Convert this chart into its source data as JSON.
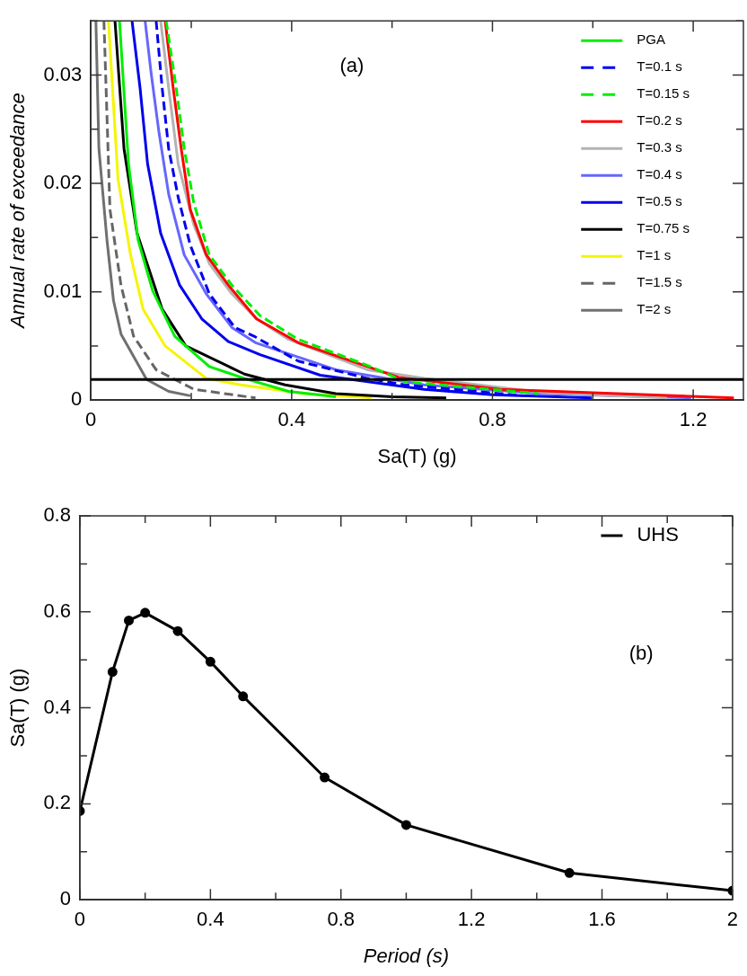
{
  "chart_data": [
    {
      "type": "line",
      "xlabel": "Sa(T) (g)",
      "ylabel": "Annual rate of exceedance",
      "xlim": [
        0,
        1.3
      ],
      "ylim": [
        0,
        0.035
      ],
      "xticks": [
        0,
        {
          "value": 0.2,
          "label": null
        },
        0.4,
        {
          "value": 0.6,
          "label": null
        },
        0.8,
        {
          "value": 1.0,
          "label": null
        },
        1.2
      ],
      "yticks": [
        0,
        {
          "value": 0.005,
          "label": null
        },
        0.01,
        {
          "value": 0.015,
          "label": null
        },
        0.02,
        {
          "value": 0.025,
          "label": null
        },
        0.03,
        {
          "value": 0.035,
          "label": null
        }
      ],
      "grid": false,
      "legend": "top right",
      "marker": "none",
      "line_style": "solid",
      "annotations": [
        "(a)"
      ],
      "ref_lines": [
        {
          "axis": "y",
          "value": 0.0019,
          "color": "#000000"
        }
      ],
      "series": [
        {
          "name": "PGA",
          "color": "#00ee00",
          "x": [
            0.057,
            0.075,
            0.094,
            0.123,
            0.167,
            0.236,
            0.306,
            0.394,
            0.488
          ],
          "values": [
            0.035,
            0.0218,
            0.0148,
            0.0101,
            0.0059,
            0.0031,
            0.002,
            0.0008,
            0.0003
          ]
        },
        {
          "name": "T=0.1 s",
          "color": "#0000ee",
          "line_style": "dashed",
          "x": [
            0.13,
            0.142,
            0.155,
            0.174,
            0.198,
            0.236,
            0.287,
            0.325,
            0.413,
            0.551,
            0.626,
            0.815,
            0.86
          ],
          "values": [
            0.035,
            0.0288,
            0.0232,
            0.0187,
            0.0143,
            0.0098,
            0.0067,
            0.0059,
            0.0036,
            0.002,
            0.0014,
            0.0006,
            0.0004
          ]
        },
        {
          "name": "T=0.15 s",
          "color": "#00ee00",
          "line_style": "dashed",
          "x": [
            0.15,
            0.17,
            0.186,
            0.205,
            0.236,
            0.281,
            0.337,
            0.413,
            0.551,
            0.626,
            0.891
          ],
          "values": [
            0.035,
            0.0288,
            0.0232,
            0.0182,
            0.0134,
            0.0106,
            0.0078,
            0.0056,
            0.0032,
            0.0017,
            0.0006
          ]
        },
        {
          "name": "T=0.2 s",
          "color": "#ff0000",
          "x": [
            0.148,
            0.164,
            0.18,
            0.198,
            0.23,
            0.274,
            0.33,
            0.413,
            0.551,
            0.613,
            0.815,
            1.281
          ],
          "values": [
            0.035,
            0.0288,
            0.0232,
            0.0176,
            0.0134,
            0.0106,
            0.0075,
            0.0053,
            0.0031,
            0.0021,
            0.001,
            0.0002
          ]
        },
        {
          "name": "T=0.3 s",
          "color": "#b3b3b3",
          "x": [
            0.139,
            0.155,
            0.174,
            0.205,
            0.236,
            0.281,
            0.33,
            0.394,
            0.551,
            0.664,
            0.9,
            1.148
          ],
          "values": [
            0.035,
            0.0288,
            0.0218,
            0.0162,
            0.0126,
            0.0098,
            0.0075,
            0.0056,
            0.0028,
            0.002,
            0.0007,
            0.0002
          ]
        },
        {
          "name": "T=0.4 s",
          "color": "#6666ff",
          "x": [
            0.108,
            0.12,
            0.136,
            0.155,
            0.186,
            0.23,
            0.281,
            0.328,
            0.488,
            0.664,
            0.9,
            1.196
          ],
          "values": [
            0.035,
            0.0302,
            0.0246,
            0.019,
            0.0134,
            0.0098,
            0.0067,
            0.0053,
            0.0028,
            0.0014,
            0.0006,
            0.0002
          ]
        },
        {
          "name": "T=0.5 s",
          "color": "#0000ee",
          "x": [
            0.082,
            0.098,
            0.113,
            0.139,
            0.177,
            0.221,
            0.274,
            0.337,
            0.457,
            0.664,
            0.8,
            0.998
          ],
          "values": [
            0.035,
            0.0288,
            0.0218,
            0.0154,
            0.0106,
            0.0075,
            0.0054,
            0.0042,
            0.0023,
            0.001,
            0.0005,
            0.0002
          ]
        },
        {
          "name": "T=0.75 s",
          "color": "#000000",
          "x": [
            0.048,
            0.066,
            0.092,
            0.142,
            0.189,
            0.306,
            0.387,
            0.488,
            0.6,
            0.708
          ],
          "values": [
            0.035,
            0.0232,
            0.0154,
            0.0084,
            0.005,
            0.0024,
            0.0014,
            0.0006,
            0.0003,
            0.0002
          ]
        },
        {
          "name": "T=1 s",
          "color": "#f5f500",
          "x": [
            0.035,
            0.054,
            0.079,
            0.104,
            0.148,
            0.23,
            0.299,
            0.425,
            0.56
          ],
          "values": [
            0.035,
            0.0204,
            0.0134,
            0.0084,
            0.005,
            0.002,
            0.0014,
            0.0006,
            0.0002
          ]
        },
        {
          "name": "T=1.5 s",
          "color": "#666666",
          "line_style": "dashed",
          "x": [
            0.026,
            0.038,
            0.06,
            0.085,
            0.13,
            0.205,
            0.328
          ],
          "values": [
            0.035,
            0.0176,
            0.0106,
            0.0059,
            0.0028,
            0.001,
            0.0002
          ]
        },
        {
          "name": "T=2 s",
          "color": "#707070",
          "x": [
            0.01,
            0.016,
            0.032,
            0.045,
            0.06,
            0.111,
            0.155,
            0.198
          ],
          "values": [
            0.035,
            0.0232,
            0.0148,
            0.0092,
            0.0061,
            0.0019,
            0.0008,
            0.0004
          ]
        }
      ]
    },
    {
      "type": "line",
      "xlabel": "Period (s)",
      "ylabel": "Sa(T) (g)",
      "xlim": [
        0,
        2
      ],
      "ylim": [
        0,
        0.8
      ],
      "xticks": [
        0,
        {
          "value": 0.2,
          "label": null
        },
        0.4,
        {
          "value": 0.6,
          "label": null
        },
        0.8,
        {
          "value": 1.0,
          "label": null
        },
        1.2,
        {
          "value": 1.4,
          "label": null
        },
        1.6,
        {
          "value": 1.8,
          "label": null
        },
        2
      ],
      "yticks": [
        0,
        {
          "value": 0.1,
          "label": null
        },
        0.2,
        {
          "value": 0.3,
          "label": null
        },
        0.4,
        {
          "value": 0.5,
          "label": null
        },
        0.6,
        {
          "value": 0.7,
          "label": null
        },
        0.8
      ],
      "grid": false,
      "legend": "top right",
      "marker": "circle",
      "line_style": "solid",
      "annotations": [
        "(b)"
      ],
      "series": [
        {
          "name": "UHS",
          "color": "#000000",
          "x": [
            0,
            0.1,
            0.15,
            0.2,
            0.3,
            0.4,
            0.5,
            0.75,
            1,
            1.5,
            2
          ],
          "values": [
            0.185,
            0.475,
            0.582,
            0.598,
            0.56,
            0.496,
            0.424,
            0.255,
            0.156,
            0.056,
            0.019
          ]
        }
      ]
    }
  ]
}
